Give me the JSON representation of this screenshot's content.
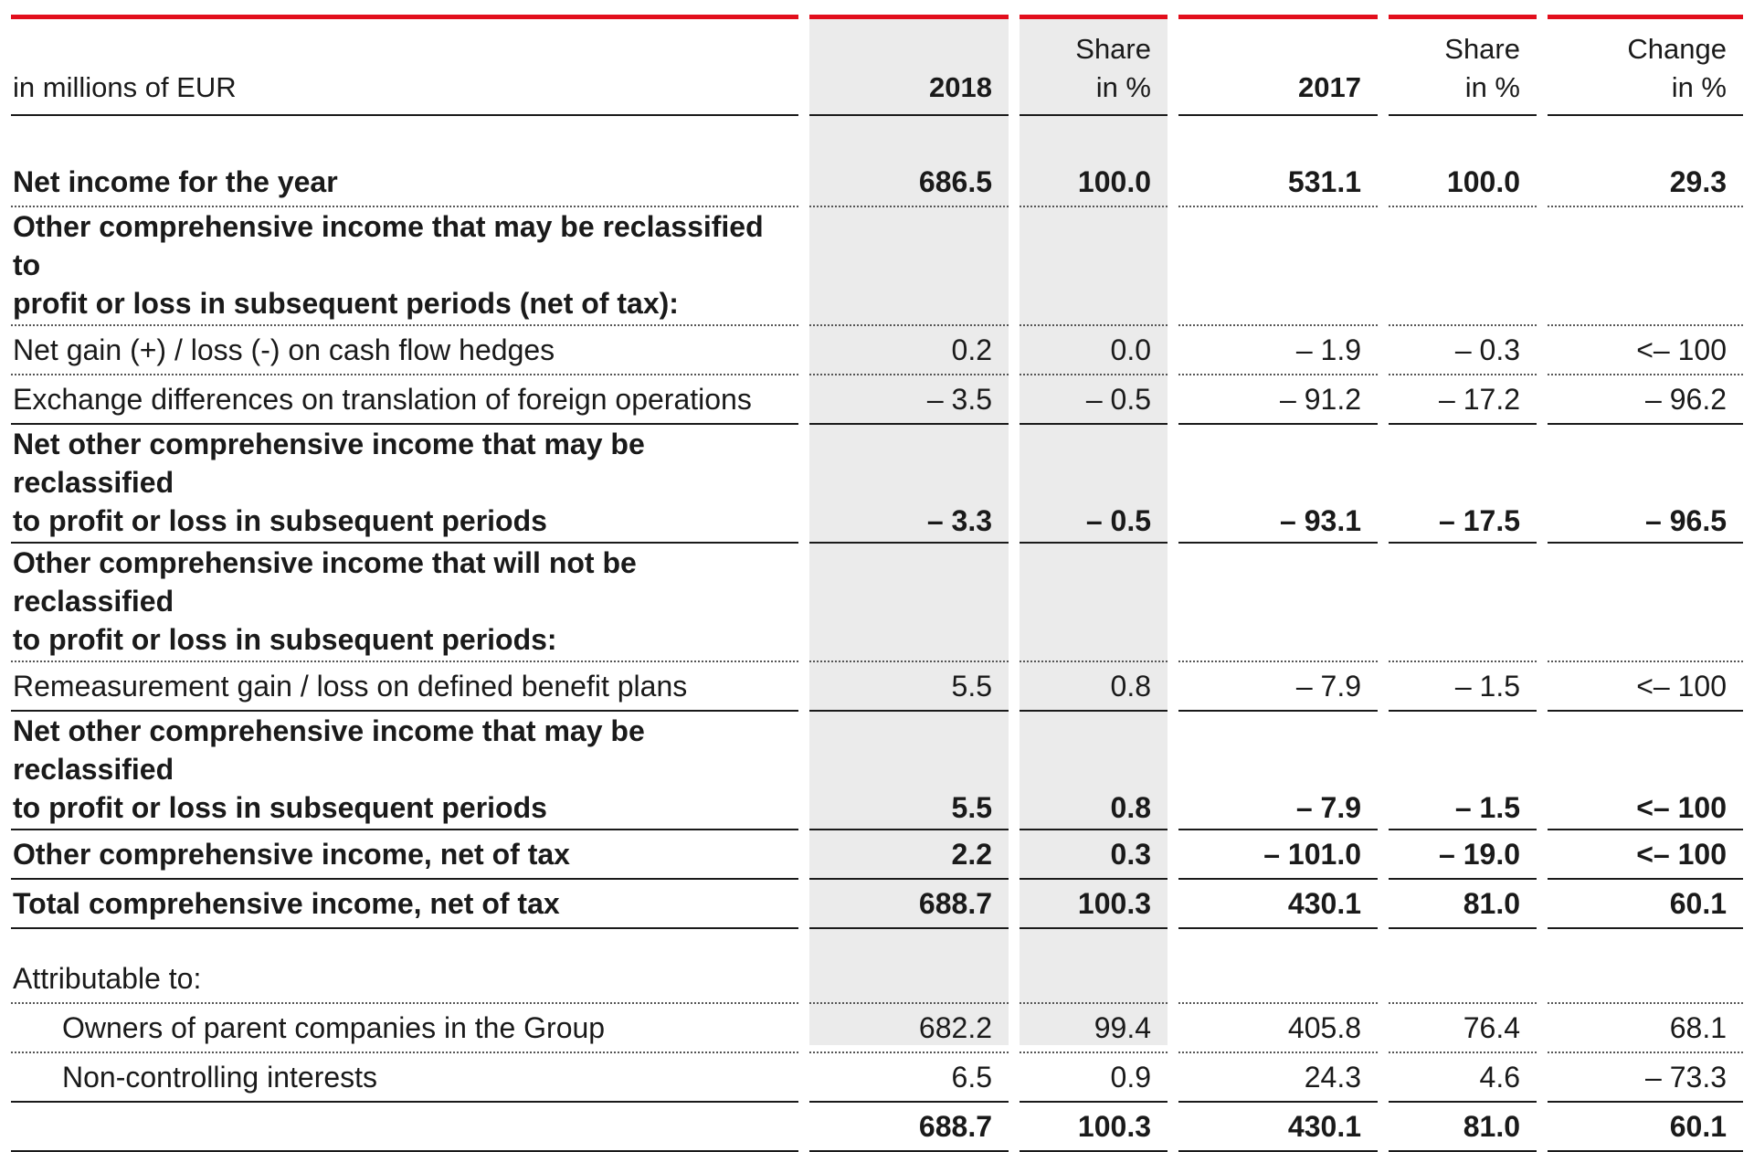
{
  "header": {
    "unit_label": "in millions of EUR",
    "col_2018": "2018",
    "col_share_2018_line1": "Share",
    "col_share_2018_line2": "in %",
    "col_2017": "2017",
    "col_share_2017_line1": "Share",
    "col_share_2017_line2": "in %",
    "col_change_line1": "Change",
    "col_change_line2": "in %"
  },
  "rows": [
    {
      "label": "Net income for the year",
      "v2018": "686.5",
      "s2018": "100.0",
      "v2017": "531.1",
      "s2017": "100.0",
      "change": "29.3"
    },
    {
      "label_line1": "Other comprehensive income that may be reclassified to",
      "label_line2": "profit or loss in subsequent periods (net of tax):"
    },
    {
      "label": "Net gain (+) / loss (-) on cash flow hedges",
      "v2018": "0.2",
      "s2018": "0.0",
      "v2017": "– 1.9",
      "s2017": "– 0.3",
      "change": "<– 100"
    },
    {
      "label": "Exchange differences on translation of foreign operations",
      "v2018": "– 3.5",
      "s2018": "– 0.5",
      "v2017": "– 91.2",
      "s2017": "– 17.2",
      "change": "– 96.2"
    },
    {
      "label_line1": "Net other comprehensive income that may be reclassified",
      "label_line2": "to profit or loss in subsequent periods",
      "v2018": "– 3.3",
      "s2018": "– 0.5",
      "v2017": "– 93.1",
      "s2017": "– 17.5",
      "change": "– 96.5"
    },
    {
      "label_line1": "Other comprehensive income that will not be reclassified",
      "label_line2": "to profit or loss in subsequent periods:"
    },
    {
      "label": "Remeasurement gain / loss on defined benefit plans",
      "v2018": "5.5",
      "s2018": "0.8",
      "v2017": "– 7.9",
      "s2017": "– 1.5",
      "change": "<– 100"
    },
    {
      "label_line1": "Net other comprehensive income that may be reclassified",
      "label_line2": "to profit or loss in subsequent periods",
      "v2018": "5.5",
      "s2018": "0.8",
      "v2017": "– 7.9",
      "s2017": "– 1.5",
      "change": "<– 100"
    },
    {
      "label": "Other comprehensive income, net of tax",
      "v2018": "2.2",
      "s2018": "0.3",
      "v2017": "– 101.0",
      "s2017": "– 19.0",
      "change": "<– 100"
    },
    {
      "label": "Total comprehensive income, net of tax",
      "v2018": "688.7",
      "s2018": "100.3",
      "v2017": "430.1",
      "s2017": "81.0",
      "change": "60.1"
    },
    {
      "label": "Attributable to:"
    },
    {
      "label": "Owners of parent companies in the Group",
      "v2018": "682.2",
      "s2018": "99.4",
      "v2017": "405.8",
      "s2017": "76.4",
      "change": "68.1"
    },
    {
      "label": "Non-controlling interests",
      "v2018": "6.5",
      "s2018": "0.9",
      "v2017": "24.3",
      "s2017": "4.6",
      "change": "– 73.3"
    },
    {
      "label": "",
      "v2018": "688.7",
      "s2018": "100.3",
      "v2017": "430.1",
      "s2017": "81.0",
      "change": "60.1"
    }
  ],
  "colors": {
    "header_rule": "#e20e1c",
    "shaded_column": "#ebebeb"
  }
}
